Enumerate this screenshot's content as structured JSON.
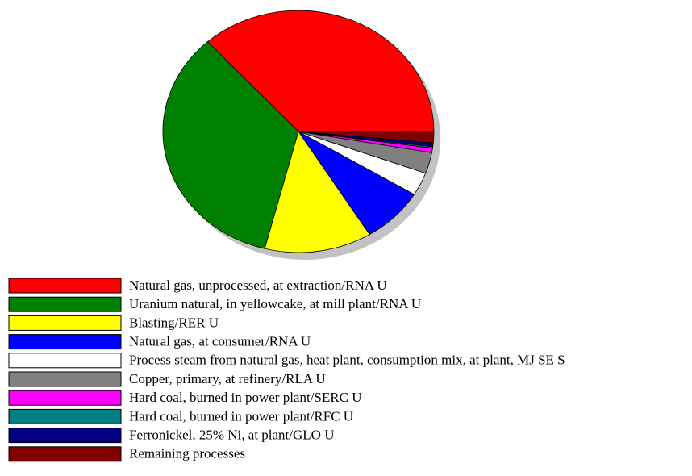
{
  "chart_data": {
    "type": "pie",
    "categories": [
      "Natural gas, unprocessed, at extraction/RNA U",
      "Uranium natural, in yellowcake, at mill plant/RNA U",
      "Blasting/RER U",
      "Natural gas, at consumer/RNA U",
      "Process steam from natural gas, heat plant, consumption mix, at plant, MJ SE S",
      "Copper, primary, at refinery/RLA U",
      "Hard coal, burned in power plant/SERC U",
      "Hard coal, burned in power plant/RFC U",
      "Ferronickel, 25% Ni, at plant/GLO U",
      "Remaining processes"
    ],
    "values": [
      36.7,
      34.3,
      12.8,
      7.5,
      3.1,
      2.8,
      0.6,
      0.2,
      0.5,
      1.5
    ],
    "colors": [
      "#ff0000",
      "#008000",
      "#ffff00",
      "#0000ff",
      "#ffffff",
      "#808080",
      "#ff00ff",
      "#008080",
      "#000080",
      "#800000"
    ]
  }
}
